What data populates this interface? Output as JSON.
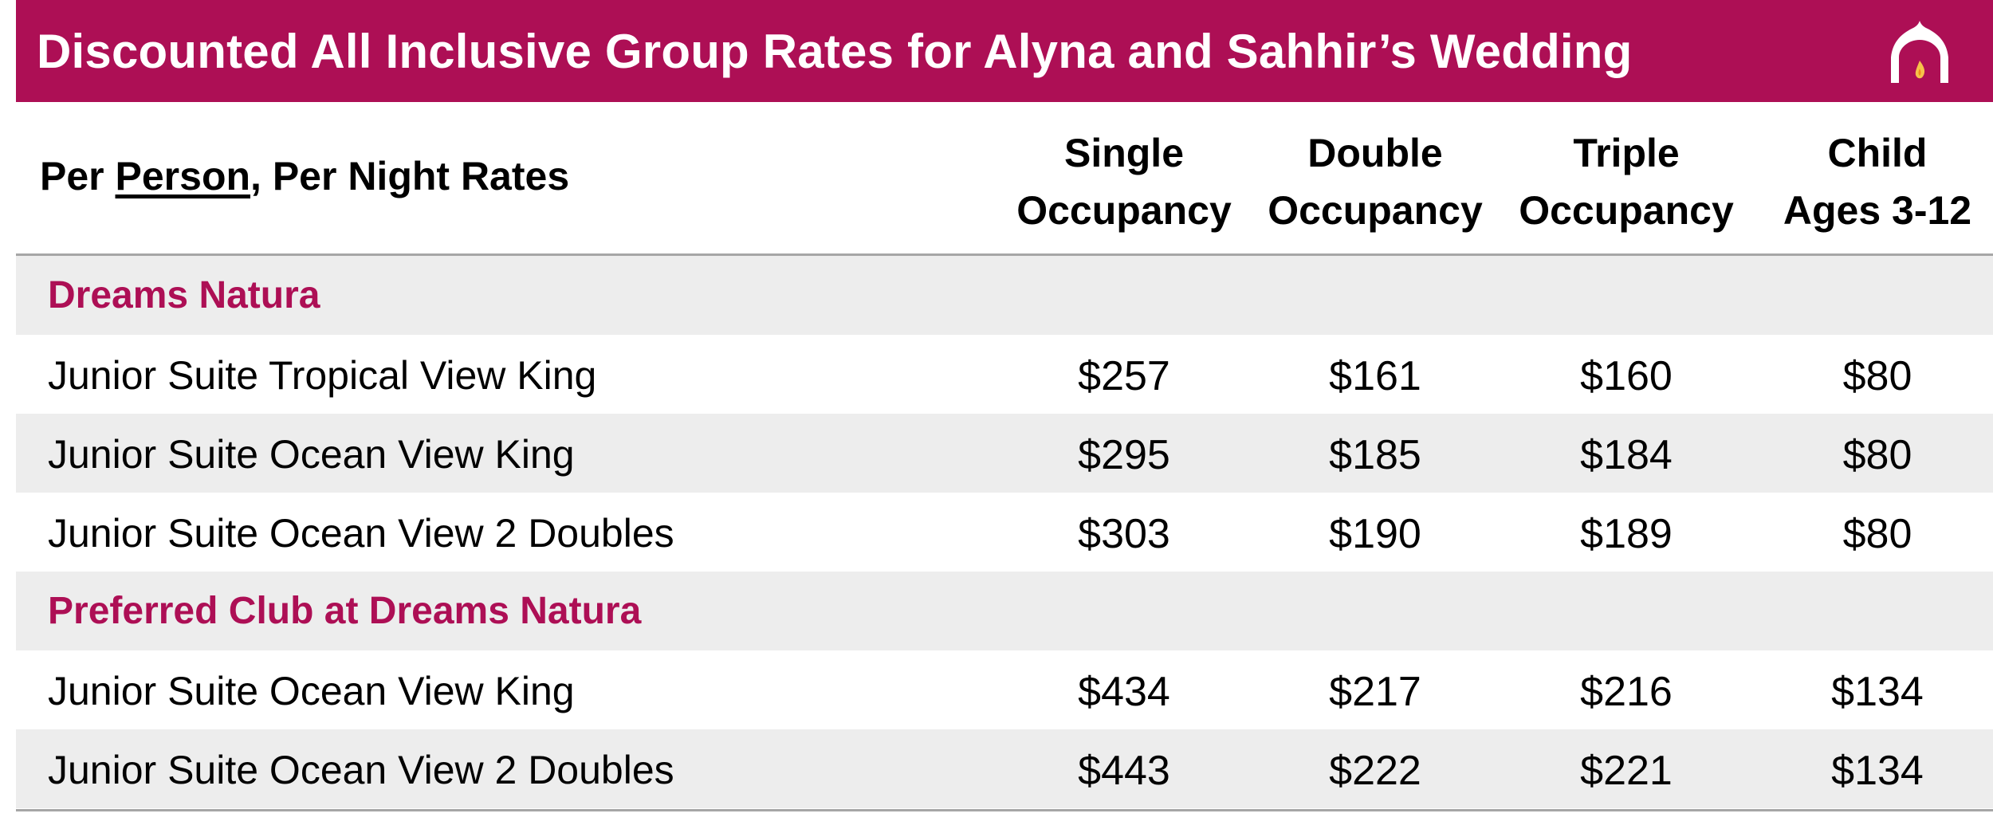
{
  "title": "Discounted All Inclusive Group Rates for Alyna and Sahhir’s Wedding",
  "logo_icon": "arch-flame-logo",
  "colors": {
    "brand": "#ad0f55",
    "row_shade": "#ededed",
    "rule": "#a6a6a6"
  },
  "header": {
    "rates_prefix": "Per ",
    "rates_underlined": "Person",
    "rates_suffix": ", Per Night Rates",
    "columns": [
      {
        "line1": "Single",
        "line2": "Occupancy"
      },
      {
        "line1": "Double",
        "line2": "Occupancy"
      },
      {
        "line1": "Triple",
        "line2": "Occupancy"
      },
      {
        "line1": "Child",
        "line2": "Ages 3-12"
      }
    ]
  },
  "sections": [
    {
      "name": "Dreams Natura",
      "rows": [
        {
          "room": "Junior Suite Tropical View King",
          "single": "$257",
          "double": "$161",
          "triple": "$160",
          "child": "$80"
        },
        {
          "room": "Junior Suite Ocean View King",
          "single": "$295",
          "double": "$185",
          "triple": "$184",
          "child": "$80"
        },
        {
          "room": "Junior Suite Ocean View 2 Doubles",
          "single": "$303",
          "double": "$190",
          "triple": "$189",
          "child": "$80"
        }
      ]
    },
    {
      "name": "Preferred Club at Dreams Natura",
      "rows": [
        {
          "room": "Junior Suite Ocean View King",
          "single": "$434",
          "double": "$217",
          "triple": "$216",
          "child": "$134"
        },
        {
          "room": "Junior Suite Ocean View 2 Doubles",
          "single": "$443",
          "double": "$222",
          "triple": "$221",
          "child": "$134"
        }
      ]
    }
  ]
}
